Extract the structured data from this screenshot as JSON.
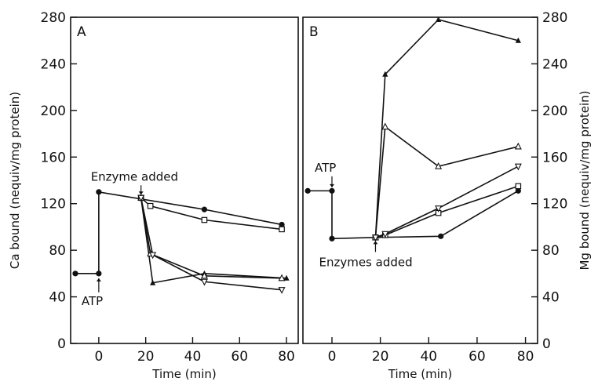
{
  "chart_data": [
    {
      "panel": "A",
      "type": "line",
      "xlabel": "Time (min)",
      "ylabel": "Ca bound (nequiv/mg protein)",
      "xlim": [
        -12,
        85
      ],
      "ylim": [
        0,
        280
      ],
      "xticks": [
        0,
        20,
        40,
        60,
        80
      ],
      "yticks": [
        0,
        40,
        80,
        120,
        160,
        200,
        240,
        280
      ],
      "annotations": [
        {
          "text": "ATP",
          "x": 0,
          "y": 60
        },
        {
          "text": "Enzyme added",
          "x": 18,
          "y": 125
        }
      ],
      "series": [
        {
          "marker": "filled-circle",
          "x": [
            -10,
            0,
            0,
            45,
            78
          ],
          "y": [
            60,
            60,
            130,
            115,
            102
          ]
        },
        {
          "marker": "open-square",
          "x": [
            18,
            22,
            45,
            78
          ],
          "y": [
            125,
            118,
            106,
            98
          ]
        },
        {
          "marker": "filled-triangle",
          "x": [
            18,
            23,
            45,
            80
          ],
          "y": [
            125,
            52,
            60,
            56
          ]
        },
        {
          "marker": "open-triangle",
          "x": [
            18,
            22,
            45,
            78
          ],
          "y": [
            125,
            77,
            58,
            56
          ]
        },
        {
          "marker": "open-inverted-triangle",
          "x": [
            18,
            23,
            45,
            78
          ],
          "y": [
            125,
            76,
            53,
            46
          ]
        }
      ]
    },
    {
      "panel": "B",
      "type": "line",
      "xlabel": "Time (min)",
      "ylabel": "Mg bound (nequiv/mg protein)",
      "xlim": [
        -12,
        85
      ],
      "ylim": [
        0,
        280
      ],
      "xticks": [
        0,
        20,
        40,
        60,
        80
      ],
      "yticks": [
        0,
        40,
        80,
        120,
        160,
        200,
        240,
        280
      ],
      "annotations": [
        {
          "text": "ATP",
          "x": 0,
          "y": 130
        },
        {
          "text": "Enzymes added",
          "x": 18,
          "y": 92
        }
      ],
      "series": [
        {
          "marker": "filled-circle",
          "x": [
            -10,
            0,
            0,
            18,
            45,
            77
          ],
          "y": [
            131,
            131,
            90,
            91,
            92,
            131
          ]
        },
        {
          "marker": "filled-triangle",
          "x": [
            18,
            22,
            44,
            77
          ],
          "y": [
            91,
            231,
            278,
            260
          ]
        },
        {
          "marker": "open-triangle",
          "x": [
            18,
            22,
            44,
            77
          ],
          "y": [
            91,
            186,
            152,
            169
          ]
        },
        {
          "marker": "open-square",
          "x": [
            18,
            22,
            44,
            77
          ],
          "y": [
            91,
            93,
            112,
            135
          ]
        },
        {
          "marker": "open-inverted-triangle",
          "x": [
            18,
            22,
            44,
            77
          ],
          "y": [
            91,
            94,
            116,
            152
          ]
        }
      ]
    }
  ]
}
